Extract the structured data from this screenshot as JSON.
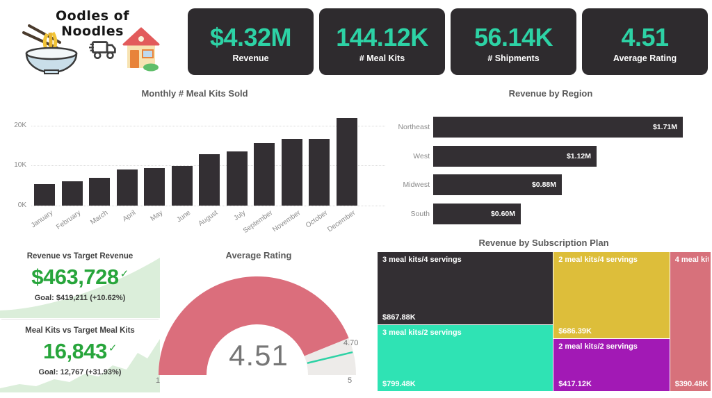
{
  "logo": {
    "title": "Oodles of Noodles",
    "icons": [
      "noodle-bowl",
      "delivery-truck",
      "house"
    ]
  },
  "kpi_cards": [
    {
      "value": "$4.32M",
      "label": "Revenue"
    },
    {
      "value": "144.12K",
      "label": "# Meal Kits"
    },
    {
      "value": "56.14K",
      "label": "# Shipments"
    },
    {
      "value": "4.51",
      "label": "Average Rating"
    }
  ],
  "colors": {
    "card_background": "#2E2B2E",
    "kpi_value_teal": "#2DD2A5",
    "bar_dark": "#332F33",
    "goal_green": "#27A53B",
    "goal_area_fill": "#DBEEDA",
    "gauge_fill": "#DB6E7C",
    "gauge_rest": "#EDEBE9",
    "gauge_target_line": "#2DD2A5",
    "title_text": "#5A5A5A",
    "axis_text": "#8A8A8A"
  },
  "chart_data": [
    {
      "id": "monthly_meal_kits",
      "type": "bar",
      "title": "Monthly # Meal Kits Sold",
      "categories": [
        "January",
        "February",
        "March",
        "April",
        "May",
        "June",
        "August",
        "July",
        "September",
        "November",
        "October",
        "December"
      ],
      "values": [
        5400,
        6000,
        6900,
        9100,
        9300,
        9900,
        12800,
        13600,
        15600,
        16700,
        16700,
        21800
      ],
      "ylim": [
        0,
        22000
      ],
      "yticks": [
        "0K",
        "10K",
        "20K"
      ],
      "ytick_values": [
        0,
        10000,
        20000
      ],
      "grid": true,
      "legend": "none"
    },
    {
      "id": "revenue_by_region",
      "type": "bar",
      "orientation": "horizontal",
      "title": "Revenue by Region",
      "categories": [
        "Northeast",
        "West",
        "Midwest",
        "South"
      ],
      "values": [
        1710000,
        1120000,
        880000,
        600000
      ],
      "labels": [
        "$1.71M",
        "$1.12M",
        "$0.88M",
        "$0.60M"
      ],
      "xlim": [
        0,
        1710000
      ],
      "legend": "none"
    },
    {
      "id": "revenue_vs_target",
      "type": "kpi",
      "title": "Revenue vs Target Revenue",
      "value": "$463,728",
      "goal": "Goal: $419,211 (+10.62%)",
      "status_icon": "✓",
      "trend": "smooth-rising-area"
    },
    {
      "id": "meal_kits_vs_target",
      "type": "kpi",
      "title": "Meal Kits vs Target Meal Kits",
      "value": "16,843",
      "goal": "Goal: 12,767 (+31.93%)",
      "status_icon": "✓",
      "trend": "jagged-rising-area"
    },
    {
      "id": "average_rating_gauge",
      "type": "gauge",
      "title": "Average Rating",
      "value": 4.51,
      "min": 1,
      "max": 5,
      "target": 4.7,
      "value_label": "4.51",
      "min_label": "1",
      "max_label": "5",
      "target_label": "4.70"
    },
    {
      "id": "revenue_by_subscription_plan",
      "type": "treemap",
      "title": "Revenue by Subscription Plan",
      "columns": [
        [
          0,
          1
        ],
        [
          2,
          3
        ],
        [
          4
        ]
      ],
      "tiles": [
        {
          "label": "3 meal kits/4 servings",
          "value": 867880,
          "value_label": "$867.88K",
          "color": "#332F33"
        },
        {
          "label": "3 meal kits/2 servings",
          "value": 799480,
          "value_label": "$799.48K",
          "color": "#2FE3B4"
        },
        {
          "label": "2 meal kits/4 servings",
          "value": 686390,
          "value_label": "$686.39K",
          "color": "#DDBE3A"
        },
        {
          "label": "2 meal kits/2 servings",
          "value": 417120,
          "value_label": "$417.12K",
          "color": "#A219B5"
        },
        {
          "label": "4 meal kit…",
          "value": 390480,
          "value_label": "$390.48K",
          "color": "#D7717B"
        }
      ]
    }
  ]
}
